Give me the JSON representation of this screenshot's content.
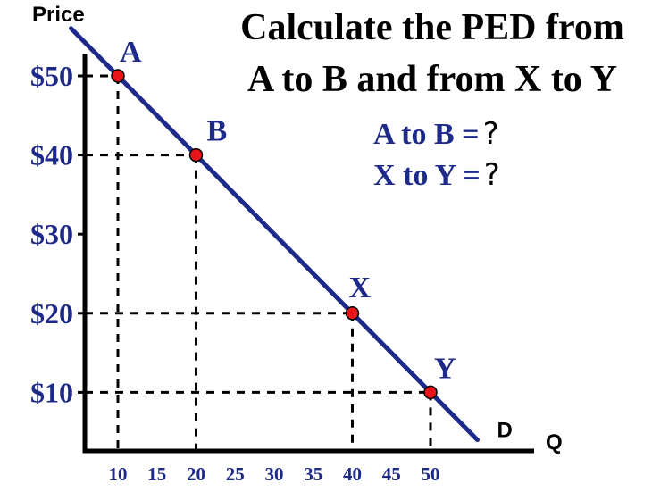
{
  "heading": {
    "line1": "Calculate the PED from",
    "line2": "A to B and from X to Y"
  },
  "questions": [
    {
      "text": "A to B =",
      "mark": "?"
    },
    {
      "text": "X to Y =",
      "mark": "?"
    }
  ],
  "colors": {
    "accent": "#1e2a8a",
    "point_fill": "#e8141a",
    "axis": "#000000"
  },
  "chart_data": {
    "type": "line",
    "ylabel": "Price",
    "xlabel": "Q",
    "series": [
      {
        "name": "D",
        "x": [
          4,
          56
        ],
        "y": [
          56,
          4
        ]
      }
    ],
    "points": [
      {
        "label": "A",
        "x": 10,
        "y": 50
      },
      {
        "label": "B",
        "x": 20,
        "y": 40
      },
      {
        "label": "X",
        "x": 40,
        "y": 20
      },
      {
        "label": "Y",
        "x": 50,
        "y": 10
      }
    ],
    "x_ticks": [
      "10",
      "15",
      "20",
      "25",
      "30",
      "35",
      "40",
      "45",
      "50"
    ],
    "x_tick_values": [
      10,
      15,
      20,
      25,
      30,
      35,
      40,
      45,
      50
    ],
    "y_ticks": [
      "$10",
      "$20",
      "$30",
      "$40",
      "$50"
    ],
    "y_tick_values": [
      10,
      20,
      30,
      40,
      50
    ],
    "guide_lines": "dashed"
  }
}
